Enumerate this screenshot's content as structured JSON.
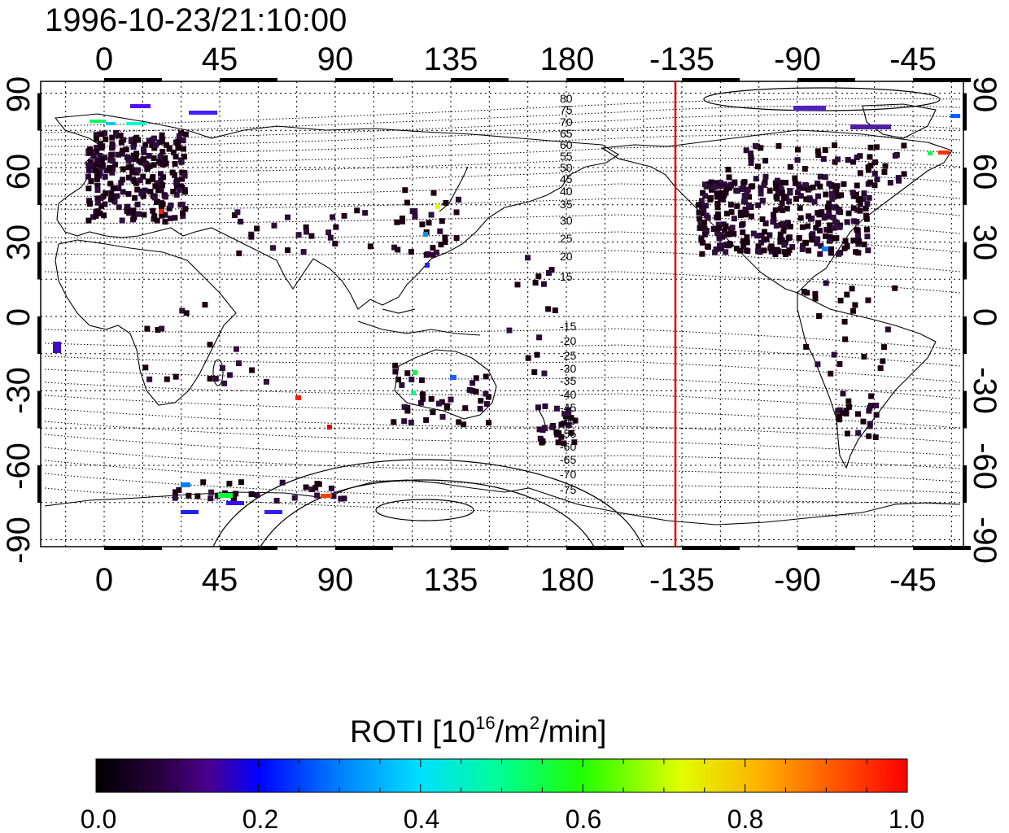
{
  "title": "1996-10-23/21:10:00",
  "top_lon_ticks": [
    "0",
    "45",
    "90",
    "135",
    "180",
    "-135",
    "-90",
    "-45"
  ],
  "bottom_lon_ticks": [
    "0",
    "45",
    "90",
    "135",
    "180",
    "-135",
    "-90",
    "-45"
  ],
  "left_lat_ticks": [
    "90",
    "60",
    "30",
    "0",
    "-30",
    "-60",
    "-90"
  ],
  "right_lat_ticks": [
    "90",
    "60",
    "30",
    "0",
    "-30",
    "-60",
    "-90"
  ],
  "contour_labels_north": [
    "80",
    "75",
    "70",
    "65",
    "60",
    "55",
    "50",
    "45",
    "40",
    "35",
    "30",
    "25",
    "20",
    "15"
  ],
  "contour_labels_south": [
    "-15",
    "-20",
    "-25",
    "-30",
    "-35",
    "-40",
    "-45",
    "-50",
    "-55",
    "-60",
    "-65",
    "-70",
    "-75"
  ],
  "colorbar": {
    "label_main": "ROTI  [10",
    "label_exp1": "16",
    "label_mid": "/m",
    "label_exp2": "2",
    "label_end": "/min]",
    "ticks": [
      "0.0",
      "0.2",
      "0.4",
      "0.6",
      "0.8",
      "1.0"
    ]
  },
  "colors": {
    "terminator": "#e00000",
    "coast": "#000000",
    "grid": "#000000"
  }
}
